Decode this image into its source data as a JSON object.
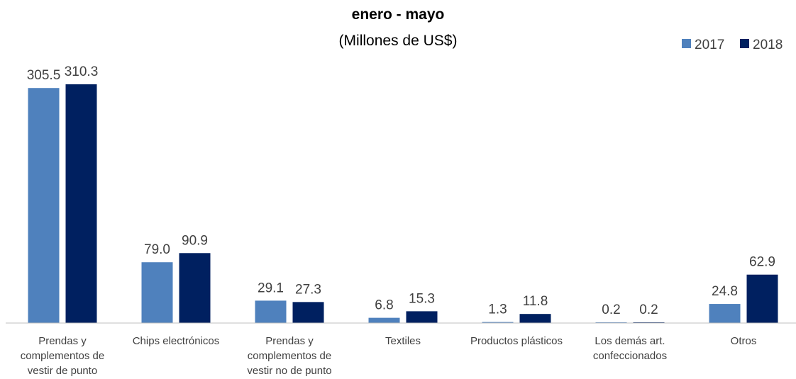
{
  "chart_data": {
    "type": "bar",
    "title": "enero - mayo",
    "subtitle": "(Millones de US$)",
    "categories": [
      [
        "Prendas y",
        "complementos de",
        "vestir de punto"
      ],
      [
        "Chips electrónicos"
      ],
      [
        "Prendas y",
        "complementos de",
        "vestir no de punto"
      ],
      [
        "Textiles"
      ],
      [
        "Productos plásticos"
      ],
      [
        "Los demás art.",
        "confeccionados"
      ],
      [
        "Otros"
      ]
    ],
    "series": [
      {
        "name": "2017",
        "color": "#4F81BD",
        "values": [
          305.5,
          79.0,
          29.1,
          6.8,
          1.3,
          0.2,
          24.8
        ],
        "labels": [
          "305.5",
          "79.0",
          "29.1",
          "6.8",
          "1.3",
          "0.2",
          "24.8"
        ]
      },
      {
        "name": "2018",
        "color": "#002060",
        "values": [
          310.3,
          90.9,
          27.3,
          15.3,
          11.8,
          0.2,
          62.9
        ],
        "labels": [
          "310.3",
          "90.9",
          "27.3",
          "15.3",
          "11.8",
          "0.2",
          "62.9"
        ]
      }
    ],
    "ylim": [
      0,
      330
    ],
    "grid": false,
    "legend_position": "top-right",
    "axis_color": "#BFBFBF"
  }
}
